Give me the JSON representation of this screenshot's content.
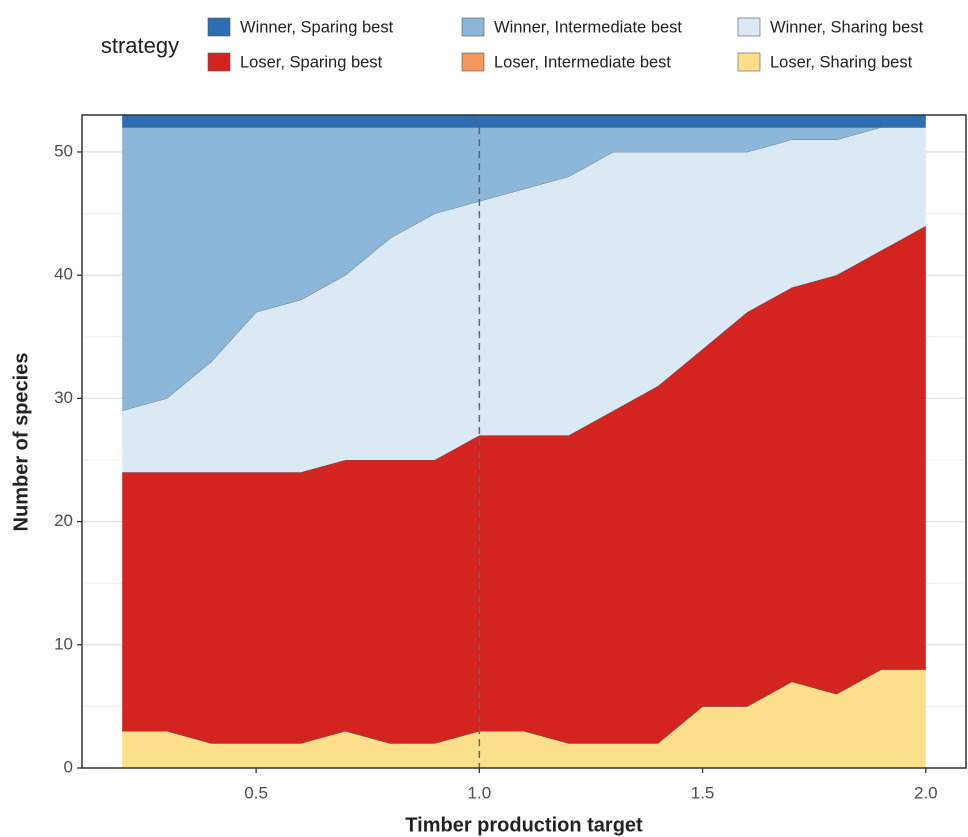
{
  "chart_data": {
    "type": "stacked_area",
    "x_label": "Timber production target",
    "y_label": "Number of species",
    "legend_title": "strategy",
    "x": [
      0.2,
      0.3,
      0.4,
      0.5,
      0.6,
      0.7,
      0.8,
      0.9,
      1.0,
      1.1,
      1.2,
      1.3,
      1.4,
      1.5,
      1.6,
      1.7,
      1.8,
      1.9,
      2.0
    ],
    "series": [
      {
        "name": "Loser, Sharing best",
        "color": "#fddf8b",
        "values": [
          3,
          3,
          2,
          2,
          2,
          3,
          2,
          2,
          3,
          3,
          2,
          2,
          2,
          5,
          5,
          7,
          6,
          8,
          8
        ]
      },
      {
        "name": "Loser, Intermediate best",
        "color": "#f4965e",
        "values": [
          0,
          0,
          0,
          0,
          0,
          0,
          0,
          0,
          0,
          0,
          0,
          0,
          0,
          0,
          0,
          0,
          0,
          0,
          0
        ]
      },
      {
        "name": "Loser, Sparing best",
        "color": "#d3241f",
        "values": [
          21,
          21,
          22,
          22,
          22,
          22,
          23,
          23,
          24,
          24,
          25,
          27,
          29,
          29,
          32,
          32,
          34,
          34,
          36
        ]
      },
      {
        "name": "Winner, Sharing best",
        "color": "#dbe9f4",
        "values": [
          5,
          6,
          9,
          13,
          14,
          15,
          18,
          20,
          19,
          20,
          21,
          21,
          19,
          16,
          13,
          12,
          11,
          10,
          8
        ]
      },
      {
        "name": "Winner, Intermediate best",
        "color": "#8cb7d8",
        "values": [
          23,
          22,
          19,
          15,
          14,
          12,
          9,
          7,
          6,
          5,
          4,
          2,
          2,
          2,
          2,
          1,
          1,
          0,
          0
        ]
      },
      {
        "name": "Winner, Sparing best",
        "color": "#2c6db3",
        "values": [
          1,
          1,
          1,
          1,
          1,
          1,
          1,
          1,
          1,
          1,
          1,
          1,
          1,
          1,
          1,
          1,
          1,
          1,
          1
        ]
      }
    ],
    "xlim": [
      0.11,
      2.09
    ],
    "ylim": [
      0,
      53
    ],
    "xticks": [
      0.5,
      {
        "value": 1.0,
        "label": "1.0"
      },
      1.5,
      {
        "value": 2.0,
        "label": "2.0"
      }
    ],
    "yticks": [
      0,
      10,
      20,
      30,
      40,
      50
    ],
    "vline": 1,
    "grid": true
  }
}
